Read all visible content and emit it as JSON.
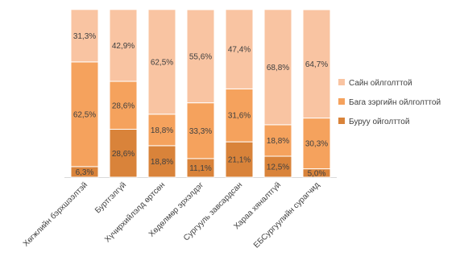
{
  "chart_data": {
    "type": "bar",
    "stacked": true,
    "percent_stacked": true,
    "categories": [
      "Хөгжлийн бэрхшээлтэй",
      "Буртгэлгүй",
      "Хүчирхийлэлд өртсөн",
      "Хөдөлмөр эрхэлдэг",
      "Сургууль завсардсан",
      "Хараа хяналтгүй",
      "ЕБСургуулийн сурагчид"
    ],
    "series": [
      {
        "name": "Буруу ойголттой",
        "values": [
          6.3,
          28.6,
          18.8,
          11.1,
          21.1,
          12.5,
          5.0
        ],
        "labels": [
          "6,3%",
          "28,6%",
          "18,8%",
          "11,1%",
          "21,1%",
          "12,5%",
          "5,0%"
        ],
        "color": "#D9833A"
      },
      {
        "name": "Бага зэргийн ойлголттой",
        "values": [
          62.5,
          28.6,
          18.8,
          33.3,
          31.6,
          18.8,
          30.3
        ],
        "labels": [
          "62,5%",
          "28,6%",
          "18,8%",
          "33,3%",
          "31,6%",
          "18,8%",
          "30,3%"
        ],
        "color": "#F5A25D"
      },
      {
        "name": "Сайн ойлголттой",
        "values": [
          31.3,
          42.9,
          62.5,
          55.6,
          47.4,
          68.8,
          64.7
        ],
        "labels": [
          "31,3%",
          "42,9%",
          "62,5%",
          "55,6%",
          "47,4%",
          "68,8%",
          "64,7%"
        ],
        "color": "#F9C4A2"
      }
    ],
    "legend_order": [
      "Сайн ойлголттой",
      "Бага зэргийн ойлголттой",
      "Буруу ойголттой"
    ],
    "legend_position": "right",
    "ylim": [
      0,
      100
    ],
    "grid": false
  }
}
